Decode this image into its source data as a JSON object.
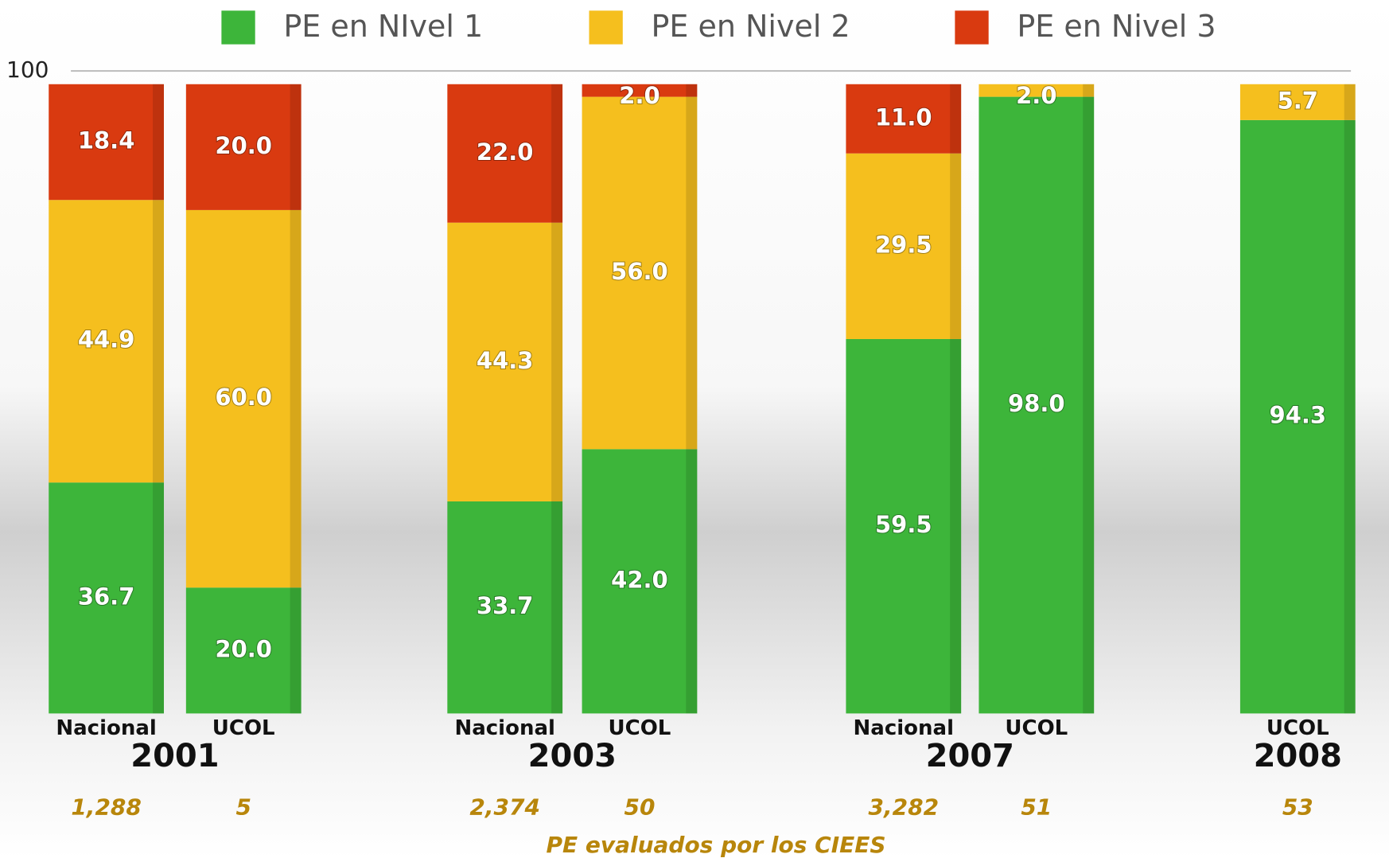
{
  "chart_data": {
    "type": "stacked_bar",
    "groups": [
      {
        "name": "2001",
        "categories": [
          "Nacional",
          "UCOL"
        ],
        "counts": [
          {
            "value": 1288,
            "label": "1,288"
          },
          5
        ]
      },
      {
        "name": "2003",
        "categories": [
          "Nacional",
          "UCOL"
        ],
        "counts": [
          {
            "value": 2374,
            "label": "2,374"
          },
          50
        ]
      },
      {
        "name": "2007",
        "categories": [
          "Nacional",
          "UCOL"
        ],
        "counts": [
          {
            "value": 3282,
            "label": "3,282"
          },
          51
        ]
      },
      {
        "name": "2008",
        "categories": [
          "UCOL"
        ],
        "counts": [
          53
        ]
      }
    ],
    "series": [
      {
        "name": "PE en NIvel 1",
        "color": "#3db53a",
        "values": [
          36.7,
          20,
          33.7,
          42,
          59.5,
          98,
          94.3
        ],
        "value_labels": [
          "36.7",
          "20.0",
          "33.7",
          "42.0",
          "59.5",
          "98.0",
          "94.3"
        ]
      },
      {
        "name": "PE en Nivel 2",
        "color": "#f5bf1e",
        "values": [
          44.9,
          60,
          44.3,
          56,
          29.5,
          2,
          5.7
        ],
        "value_labels": [
          "44.9",
          "60.0",
          "44.3",
          "56.0",
          "29.5",
          "2.0",
          "5.7"
        ]
      },
      {
        "name": "PE en Nivel 3",
        "color": "#d93a10",
        "values": [
          18.4,
          20,
          22,
          2,
          11,
          null,
          null
        ],
        "value_labels": [
          "18.4",
          "20.0",
          "22.0",
          "2.0",
          "11.0",
          null,
          null
        ]
      }
    ],
    "xlabel": "PE evaluados por los CIEES",
    "ylim": [
      0,
      100
    ],
    "yticks": [
      100
    ],
    "grid": true
  }
}
